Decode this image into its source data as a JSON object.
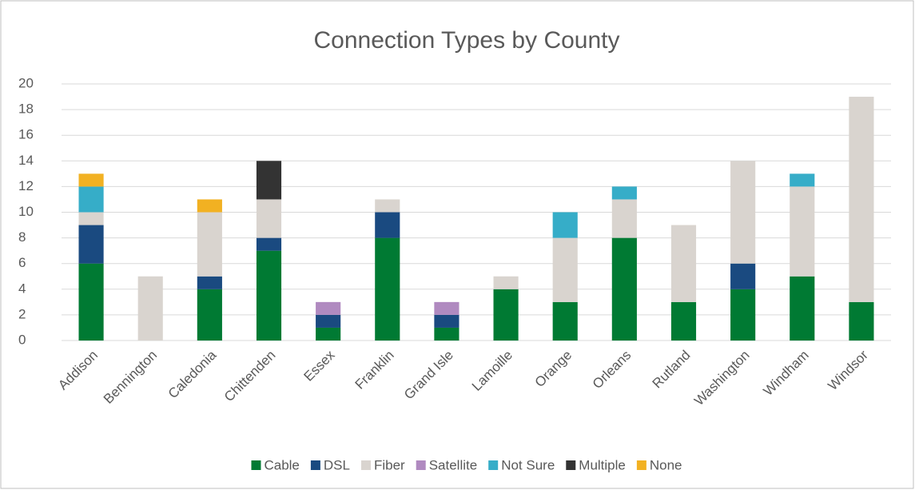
{
  "chart_data": {
    "type": "stacked_bar",
    "title": "Connection Types by County",
    "categories": [
      "Addison",
      "Bennington",
      "Caledonia",
      "Chittenden",
      "Essex",
      "Franklin",
      "Grand Isle",
      "Lamoille",
      "Orange",
      "Orleans",
      "Rutland",
      "Washington",
      "Windham",
      "Windsor"
    ],
    "series": [
      {
        "name": "Cable",
        "color": "#007a33",
        "values": [
          6,
          0,
          4,
          7,
          1,
          8,
          1,
          4,
          3,
          8,
          3,
          4,
          5,
          3
        ]
      },
      {
        "name": "DSL",
        "color": "#1a4a80",
        "values": [
          3,
          0,
          1,
          1,
          1,
          2,
          1,
          0,
          0,
          0,
          0,
          2,
          0,
          0
        ]
      },
      {
        "name": "Fiber",
        "color": "#d9d4cf",
        "values": [
          1,
          5,
          5,
          3,
          0,
          1,
          0,
          1,
          5,
          3,
          6,
          8,
          7,
          16
        ]
      },
      {
        "name": "Satellite",
        "color": "#b08ac0",
        "values": [
          0,
          0,
          0,
          0,
          1,
          0,
          1,
          0,
          0,
          0,
          0,
          0,
          0,
          0
        ]
      },
      {
        "name": "Not Sure",
        "color": "#36adc8",
        "values": [
          2,
          0,
          0,
          0,
          0,
          0,
          0,
          0,
          2,
          1,
          0,
          0,
          1,
          0
        ]
      },
      {
        "name": "Multiple",
        "color": "#333333",
        "values": [
          0,
          0,
          0,
          3,
          0,
          0,
          0,
          0,
          0,
          0,
          0,
          0,
          0,
          0
        ]
      },
      {
        "name": "None",
        "color": "#f2b122",
        "values": [
          1,
          0,
          1,
          0,
          0,
          0,
          0,
          0,
          0,
          0,
          0,
          0,
          0,
          0
        ]
      }
    ],
    "ylim": [
      0,
      20
    ],
    "yticks": [
      0,
      2,
      4,
      6,
      8,
      10,
      12,
      14,
      16,
      18,
      20
    ],
    "grid": true,
    "legend": "bottom"
  }
}
